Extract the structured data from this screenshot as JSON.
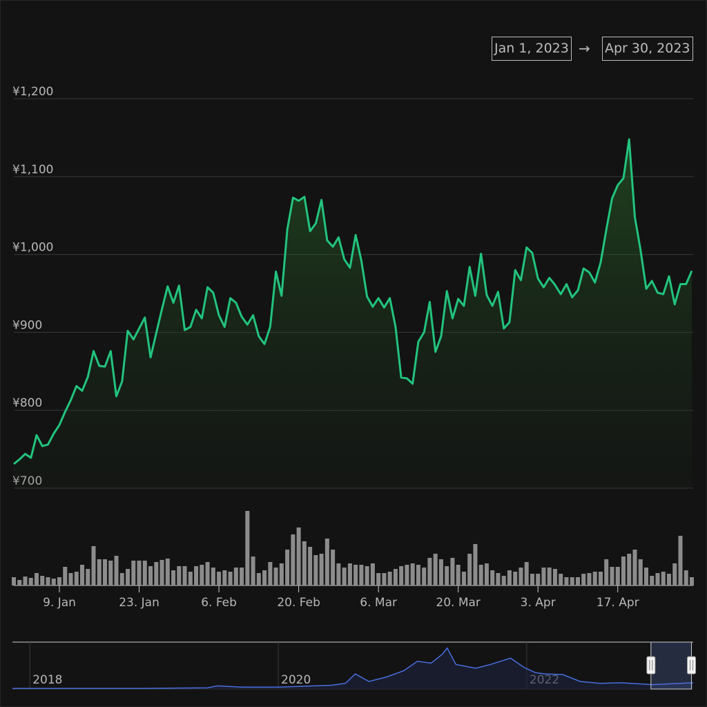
{
  "range": {
    "from": "Jan 1, 2023",
    "separator": "→",
    "to": "Apr 30, 2023"
  },
  "chart_data": [
    {
      "type": "line",
      "x": [
        "2023-01-01",
        "2023-01-02",
        "2023-01-03",
        "2023-01-04",
        "2023-01-05",
        "2023-01-06",
        "2023-01-07",
        "2023-01-08",
        "2023-01-09",
        "2023-01-10",
        "2023-01-11",
        "2023-01-12",
        "2023-01-13",
        "2023-01-14",
        "2023-01-15",
        "2023-01-16",
        "2023-01-17",
        "2023-01-18",
        "2023-01-19",
        "2023-01-20",
        "2023-01-21",
        "2023-01-22",
        "2023-01-23",
        "2023-01-24",
        "2023-01-25",
        "2023-01-26",
        "2023-01-27",
        "2023-01-28",
        "2023-01-29",
        "2023-01-30",
        "2023-01-31",
        "2023-02-01",
        "2023-02-02",
        "2023-02-03",
        "2023-02-04",
        "2023-02-05",
        "2023-02-06",
        "2023-02-07",
        "2023-02-08",
        "2023-02-09",
        "2023-02-10",
        "2023-02-11",
        "2023-02-12",
        "2023-02-13",
        "2023-02-14",
        "2023-02-15",
        "2023-02-16",
        "2023-02-17",
        "2023-02-18",
        "2023-02-19",
        "2023-02-20",
        "2023-02-21",
        "2023-02-22",
        "2023-02-23",
        "2023-02-24",
        "2023-02-25",
        "2023-02-26",
        "2023-02-27",
        "2023-02-28",
        "2023-03-01",
        "2023-03-02",
        "2023-03-03",
        "2023-03-04",
        "2023-03-05",
        "2023-03-06",
        "2023-03-07",
        "2023-03-08",
        "2023-03-09",
        "2023-03-10",
        "2023-03-11",
        "2023-03-12",
        "2023-03-13",
        "2023-03-14",
        "2023-03-15",
        "2023-03-16",
        "2023-03-17",
        "2023-03-18",
        "2023-03-19",
        "2023-03-20",
        "2023-03-21",
        "2023-03-22",
        "2023-03-23",
        "2023-03-24",
        "2023-03-25",
        "2023-03-26",
        "2023-03-27",
        "2023-03-28",
        "2023-03-29",
        "2023-03-30",
        "2023-03-31",
        "2023-04-01",
        "2023-04-02",
        "2023-04-03",
        "2023-04-04",
        "2023-04-05",
        "2023-04-06",
        "2023-04-07",
        "2023-04-08",
        "2023-04-09",
        "2023-04-10",
        "2023-04-11",
        "2023-04-12",
        "2023-04-13",
        "2023-04-14",
        "2023-04-15",
        "2023-04-16",
        "2023-04-17",
        "2023-04-18",
        "2023-04-19",
        "2023-04-20",
        "2023-04-21",
        "2023-04-22",
        "2023-04-23",
        "2023-04-24",
        "2023-04-25",
        "2023-04-26",
        "2023-04-27",
        "2023-04-28",
        "2023-04-29",
        "2023-04-30"
      ],
      "xlim": [
        "2023-01-01",
        "2023-04-30"
      ],
      "xticks": [
        {
          "value": "2023-01-09",
          "label": "9. Jan"
        },
        {
          "value": "2023-01-23",
          "label": "23. Jan"
        },
        {
          "value": "2023-02-06",
          "label": "6. Feb"
        },
        {
          "value": "2023-02-20",
          "label": "20. Feb"
        },
        {
          "value": "2023-03-06",
          "label": "6. Mar"
        },
        {
          "value": "2023-03-20",
          "label": "20. Mar"
        },
        {
          "value": "2023-04-03",
          "label": "3. Apr"
        },
        {
          "value": "2023-04-17",
          "label": "17. Apr"
        }
      ],
      "ylim": [
        700,
        1200
      ],
      "yticks": [
        {
          "value": 700,
          "label": "¥700"
        },
        {
          "value": 800,
          "label": "¥800"
        },
        {
          "value": 900,
          "label": "¥900"
        },
        {
          "value": 1000,
          "label": "¥1,000"
        },
        {
          "value": 1100,
          "label": "¥1,100"
        },
        {
          "value": 1200,
          "label": "¥1,200"
        }
      ],
      "y2lim": [
        0,
        110
      ],
      "grid": true,
      "series": [
        {
          "type": "area",
          "color": "#22c47e",
          "values": [
            731,
            737,
            744,
            739,
            768,
            754,
            756,
            770,
            781,
            798,
            813,
            831,
            825,
            843,
            876,
            857,
            856,
            876,
            818,
            837,
            902,
            891,
            905,
            919,
            868,
            899,
            930,
            959,
            938,
            960,
            903,
            907,
            929,
            918,
            958,
            951,
            922,
            907,
            944,
            938,
            920,
            910,
            922,
            895,
            885,
            907,
            978,
            947,
            1032,
            1073,
            1069,
            1074,
            1030,
            1040,
            1070,
            1018,
            1010,
            1022,
            994,
            983,
            1025,
            992,
            946,
            933,
            944,
            932,
            944,
            907,
            842,
            841,
            834,
            888,
            900,
            939,
            875,
            895,
            953,
            918,
            943,
            934,
            984,
            947,
            1001,
            948,
            934,
            952,
            905,
            913,
            980,
            967,
            1009,
            1002,
            969,
            958,
            970,
            961,
            949,
            962,
            945,
            954,
            982,
            977,
            964,
            990,
            1032,
            1072,
            1089,
            1098,
            1148,
            1048,
            1006,
            956,
            966,
            951,
            949,
            972,
            936,
            962,
            962,
            979
          ]
        },
        {
          "type": "column",
          "axis": "y2",
          "color": "#8c8c8c",
          "values": [
            12,
            8,
            13,
            11,
            18,
            14,
            12,
            10,
            12,
            27,
            18,
            20,
            30,
            24,
            57,
            38,
            38,
            36,
            43,
            18,
            24,
            36,
            36,
            36,
            28,
            34,
            37,
            39,
            22,
            28,
            28,
            20,
            28,
            30,
            34,
            26,
            20,
            22,
            20,
            26,
            26,
            108,
            42,
            18,
            22,
            34,
            26,
            32,
            52,
            74,
            84,
            64,
            56,
            44,
            46,
            68,
            52,
            32,
            26,
            32,
            30,
            30,
            28,
            32,
            18,
            18,
            20,
            24,
            28,
            30,
            32,
            30,
            26,
            40,
            46,
            38,
            28,
            40,
            30,
            20,
            46,
            60,
            30,
            32,
            22,
            18,
            14,
            22,
            20,
            26,
            34,
            17,
            17,
            26,
            26,
            24,
            17,
            12,
            12,
            12,
            17,
            18,
            20,
            20,
            38,
            27,
            27,
            42,
            46,
            52,
            38,
            26,
            14,
            18,
            20,
            17,
            32,
            72,
            22,
            12
          ]
        }
      ]
    },
    {
      "type": "line",
      "x": [
        2017.86,
        2018.32,
        2018.87,
        2019.43,
        2019.51,
        2019.71,
        2020.0,
        2020.43,
        2020.54,
        2020.62,
        2020.73,
        2020.87,
        2021.01,
        2021.12,
        2021.23,
        2021.32,
        2021.36,
        2021.43,
        2021.59,
        2021.71,
        2021.87,
        2021.98,
        2022.07,
        2022.15,
        2022.29,
        2022.43,
        2022.59,
        2022.76,
        2023.01,
        2023.34
      ],
      "xlim": [
        2017.86,
        2023.34
      ],
      "xticks": [
        2018,
        2020,
        2022
      ],
      "ylim": [
        0,
        7000
      ],
      "series": [
        {
          "color": "#4a6fe0",
          "values": [
            100,
            100,
            100,
            200,
            500,
            300,
            300,
            600,
            900,
            2400,
            1200,
            1900,
            2900,
            4400,
            4100,
            5500,
            6500,
            3900,
            3300,
            3900,
            4900,
            3400,
            2600,
            2400,
            2300,
            1200,
            900,
            1000,
            700,
            1000
          ]
        }
      ]
    }
  ]
}
